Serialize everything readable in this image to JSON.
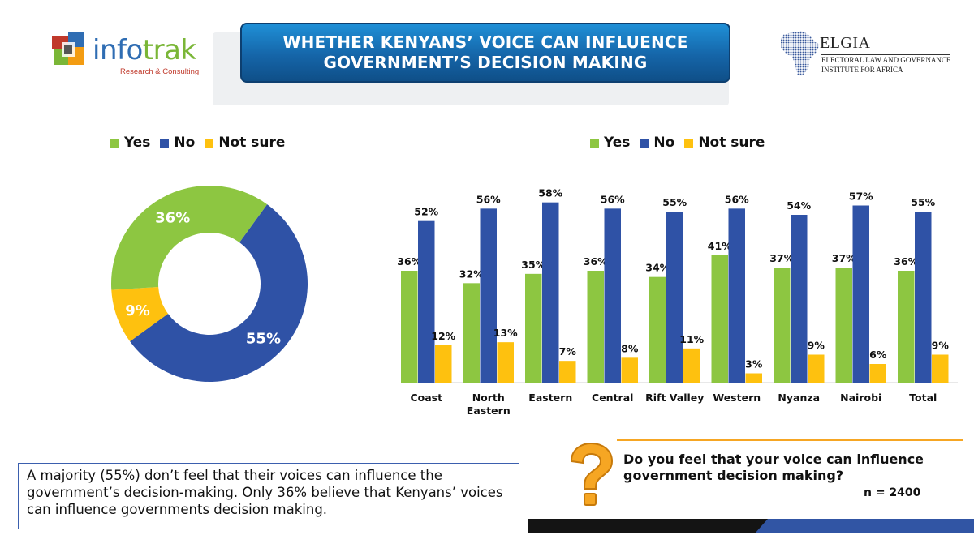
{
  "header": {
    "title": "WHETHER KENYANS’ VOICE CAN INFLUENCE GOVERNMENT’S DECISION MAKING",
    "left_logo": {
      "name_part1": "info",
      "name_part2": "trak",
      "tagline": "Research & Consulting"
    },
    "right_logo": {
      "name": "ELGIA",
      "line1": "ELECTORAL LAW AND GOVERNANCE",
      "line2": "INSTITUTE FOR AFRICA"
    }
  },
  "colors": {
    "yes": "#8dc641",
    "no": "#2f52a6",
    "not_sure": "#fec10f",
    "title_bg": "#1565a8",
    "accent": "#f6a623"
  },
  "legend": [
    {
      "key": "yes",
      "label": "Yes"
    },
    {
      "key": "no",
      "label": "No"
    },
    {
      "key": "not_sure",
      "label": "Not sure"
    }
  ],
  "chart_data": [
    {
      "type": "pie",
      "variant": "donut",
      "title": "",
      "slices": [
        {
          "label": "No",
          "value": 55,
          "display": "55%"
        },
        {
          "label": "Not sure",
          "value": 9,
          "display": "9%"
        },
        {
          "label": "Yes",
          "value": 36,
          "display": "36%"
        }
      ],
      "legend_position": "top"
    },
    {
      "type": "bar",
      "title": "",
      "xlabel": "",
      "ylabel": "",
      "ylim": [
        0,
        62
      ],
      "grid": false,
      "legend_position": "top",
      "categories": [
        "Coast",
        "North Eastern",
        "Eastern",
        "Central",
        "Rift Valley",
        "Western",
        "Nyanza",
        "Nairobi",
        "Total"
      ],
      "category_lines": [
        [
          "Coast"
        ],
        [
          "North",
          "Eastern"
        ],
        [
          "Eastern"
        ],
        [
          "Central"
        ],
        [
          "Rift Valley"
        ],
        [
          "Western"
        ],
        [
          "Nyanza"
        ],
        [
          "Nairobi"
        ],
        [
          "Total"
        ]
      ],
      "series": [
        {
          "name": "Yes",
          "key": "yes",
          "values": [
            36,
            32,
            35,
            36,
            34,
            41,
            37,
            37,
            36
          ]
        },
        {
          "name": "No",
          "key": "no",
          "values": [
            52,
            56,
            58,
            56,
            55,
            56,
            54,
            57,
            55
          ]
        },
        {
          "name": "Not sure",
          "key": "not_sure",
          "values": [
            12,
            13,
            7,
            8,
            11,
            3,
            9,
            6,
            9
          ]
        }
      ]
    }
  ],
  "summary": " A majority (55%) don’t feel that their voices can influence the government’s decision-making. Only 36% believe that Kenyans’ voices can influence governments decision making.",
  "question": {
    "text": "Do you feel that your voice can influence government decision making?",
    "sample": "n = 2400",
    "icon": "question-mark-icon"
  }
}
